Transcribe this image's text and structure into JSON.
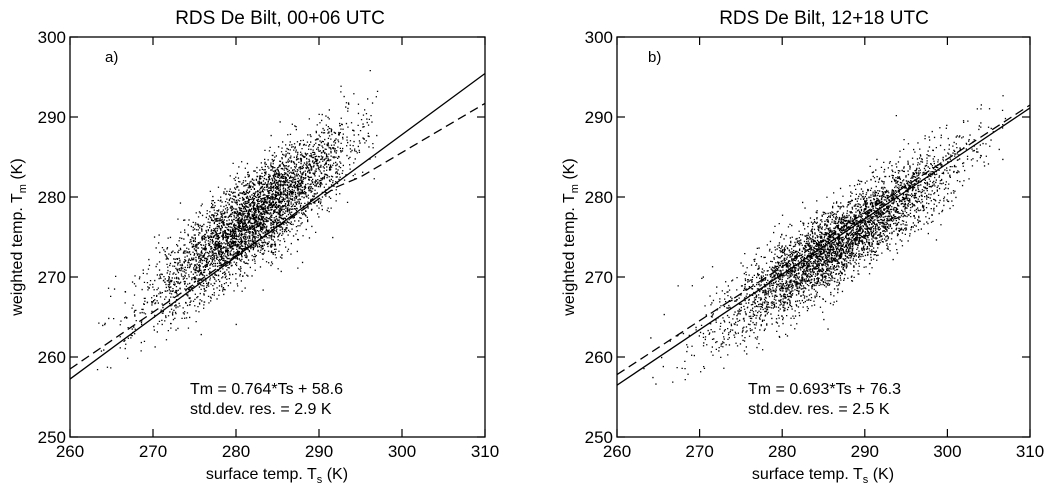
{
  "chart_data": [
    {
      "type": "scatter",
      "panel_label": "a)",
      "title": "RDS De Bilt, 00+06 UTC",
      "xlabel": "surface temp. T",
      "xlabel_sub": "s",
      "xlabel_unit": " (K)",
      "ylabel": "weighted temp. T",
      "ylabel_sub": "m",
      "ylabel_unit": " (K)",
      "xlim": [
        260,
        310
      ],
      "ylim": [
        250,
        300
      ],
      "xticks": [
        "260",
        "270",
        "280",
        "290",
        "300",
        "310"
      ],
      "yticks": [
        "250",
        "260",
        "270",
        "280",
        "290",
        "300"
      ],
      "fit_text": "Tm = 0.764*Ts + 58.6",
      "std_text": "std.dev. res. =  2.9 K",
      "cloud": {
        "n": 4200,
        "center_x": 282,
        "sd_x": 5.8,
        "min_x": 261,
        "max_x": 297,
        "slope": 0.78,
        "intercept": 57.5,
        "noise": 2.9
      },
      "fit_line": {
        "slope": 0.764,
        "intercept": 58.6,
        "x": [
          260,
          310
        ]
      },
      "dashed_line": {
        "x": [
          260,
          292,
          295,
          310
        ],
        "y": [
          258.5,
          281.2,
          282.5,
          291.7
        ]
      }
    },
    {
      "type": "scatter",
      "panel_label": "b)",
      "title": "RDS De Bilt, 12+18 UTC",
      "xlabel": "surface temp. T",
      "xlabel_sub": "s",
      "xlabel_unit": " (K)",
      "ylabel": "weighted temp. T",
      "ylabel_sub": "m",
      "ylabel_unit": " (K)",
      "xlim": [
        260,
        310
      ],
      "ylim": [
        250,
        300
      ],
      "xticks": [
        "260",
        "270",
        "280",
        "290",
        "300",
        "310"
      ],
      "yticks": [
        "250",
        "260",
        "270",
        "280",
        "290",
        "300"
      ],
      "fit_text": "Tm = 0.693*Ts + 76.3",
      "std_text": "std.dev. res. =  2.5 K",
      "cloud": {
        "n": 4200,
        "center_x": 287,
        "sd_x": 7.2,
        "min_x": 262,
        "max_x": 307,
        "slope": 0.69,
        "intercept": 76.5,
        "noise": 2.5
      },
      "fit_line": {
        "slope": 0.693,
        "intercept": 76.3,
        "x": [
          260,
          310
        ]
      },
      "dashed_line": {
        "x": [
          260,
          310
        ],
        "y": [
          257.8,
          291.5
        ]
      }
    }
  ]
}
